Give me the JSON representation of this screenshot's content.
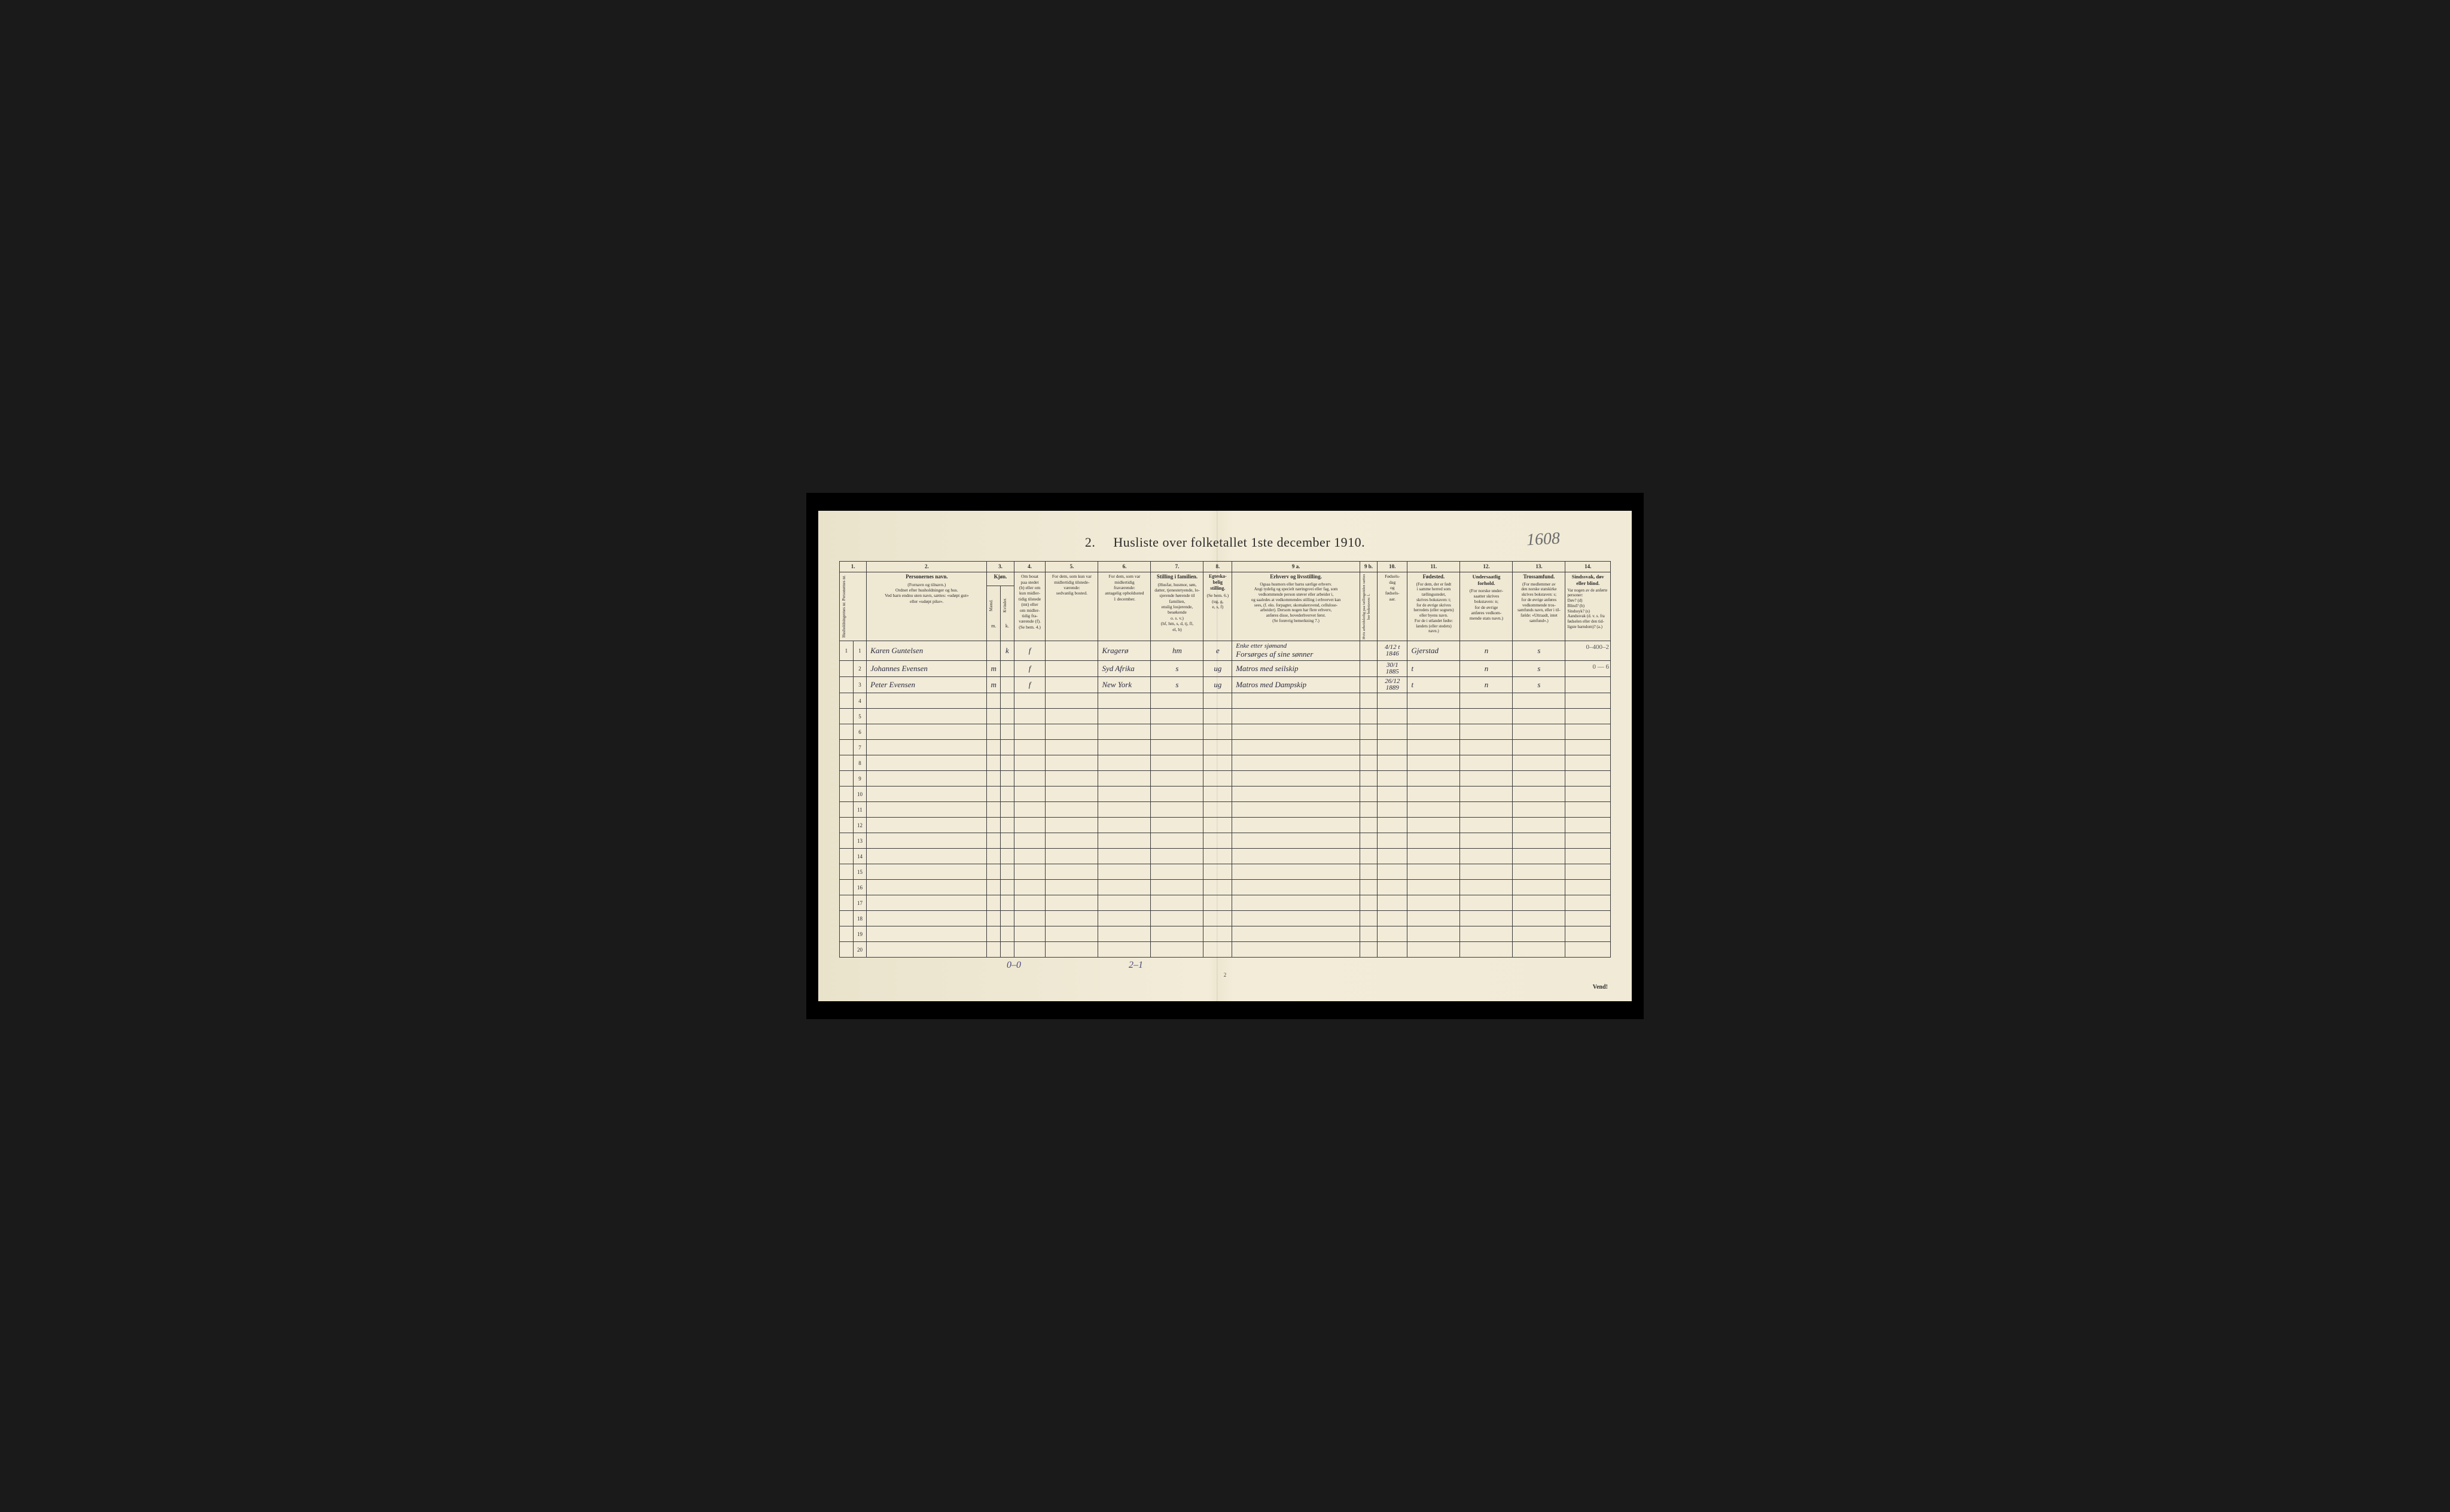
{
  "title_prefix": "2.",
  "title": "Husliste over folketallet 1ste december 1910.",
  "handwritten_top_right": "1608",
  "column_numbers": [
    "1.",
    "2.",
    "3.",
    "4.",
    "5.",
    "6.",
    "7.",
    "8.",
    "9 a.",
    "9 b.",
    "10.",
    "11.",
    "12.",
    "13.",
    "14."
  ],
  "headers": {
    "col1": "Husholdningernes nr.\nPersonernes nr.",
    "col2_main": "Personernes navn.",
    "col2_sub": "(Fornavn og tilnavn.)\nOrdnet efter husholdninger og hus.\nVed barn endnu uten navn, sættes: «udøpt gut»\neller «udøpt pike».",
    "col3_main": "Kjøn.",
    "col3_sub_m": "Mænd.",
    "col3_sub_k": "Kvinder.",
    "col3_mk": "m. k.",
    "col4_main": "Om bosat\npaa stedet\n(b) eller om\nkun midler-\ntidig tilstede\n(mt) eller\nom midler-\ntidig fra-\nværende (f).\n(Se bem. 4.)",
    "col5_main": "For dem, som kun var\nmidlertidig tilstede-\nværende:",
    "col5_sub": "sedvanlig bosted.",
    "col6_main": "For dem, som var\nmidlertidig\nfraværende:",
    "col6_sub": "antagelig opholdssted\n1 december.",
    "col7_main": "Stilling i familien.",
    "col7_sub": "(Husfar, husmor, søn,\ndatter, tjenestetyende, lo-\nsjerende hørende til familien,\nenslig losjerende, besøkende\no. s. v.)\n(hf, hm, s, d, tj, fl,\nel, b)",
    "col8_main": "Egteska-\nbelig\nstilling.",
    "col8_sub": "(Se bem. 6.)\n(ug, g,\ne, s, f)",
    "col9a_main": "Erhverv og livsstilling.",
    "col9a_sub": "Ogsaa husmors eller barns særlige erhverv.\nAngi tydelig og specielt næringsvei eller fag, som\nvedkommende person utøver eller arbeider i,\nog saaledes at vedkommendes stilling i erhvervet kan\nsees, (f. eks. forpagter, skomakersvend, cellulose-\narbeider). Dersom nogen har flere erhverv,\nanføres disse, hovederhvervet først.\n(Se forøvrig bemerkning 7.)",
    "col9b": "Hvis arbeidsledig\npaa tællingstiden sættes\nher bokstaven: l.",
    "col10_main": "Fødsels-\ndag\nog\nfødsels-\naar.",
    "col11_main": "Fødested.",
    "col11_sub": "(For dem, der er født\ni samme herred som\ntællingsstedet,\nskrives bokstaven: t;\nfor de øvrige skrives\nherredets (eller sognets)\neller byens navn.\nFor de i utlandet fødte:\nlandets (eller stedets)\nnavn.)",
    "col12_main": "Undersaatlig\nforhold.",
    "col12_sub": "(For norske under-\nsaatter skrives\nbokstaven: n;\nfor de øvrige\nanføres vedkom-\nmende stats navn.)",
    "col13_main": "Trossamfund.",
    "col13_sub": "(For medlemmer av\nden norske statskirke\nskrives bokstaven: s;\nfor de øvrige anføres\nvedkommende tros-\nsamfunds navn, eller i til-\nfælde: «Uttraadt, intet\nsamfund».)",
    "col14_main": "Sindssvak, døv\neller blind.",
    "col14_sub": "Var nogen av de anførte\npersoner:\nDøv?       (d)\nBlind?     (b)\nSindssyk? (s)\nAandssvak (d. v. s. fra\nfødselen eller den tid-\nligste barndom)? (a.)"
  },
  "rows": [
    {
      "num": "1",
      "name": "Karen Guntelsen",
      "sex_m": "",
      "sex_k": "k",
      "col4": "f",
      "col5": "",
      "col6": "Kragerø",
      "col7": "hm",
      "col8": "e",
      "col9a_top": "Enke etter sjømand",
      "col9a": "Forsørges af sine sønner",
      "col9b": "",
      "col10": "4/12 t\n1846",
      "col11": "Gjerstad",
      "col12": "n",
      "col13": "s",
      "col14": "",
      "note": "0–400–2"
    },
    {
      "num": "2",
      "name": "Johannes Evensen",
      "sex_m": "m",
      "sex_k": "",
      "col4": "f",
      "col5": "",
      "col6": "Syd Afrika",
      "col7": "s",
      "col8": "ug",
      "col9a": "Matros med seilskip",
      "col9b": "",
      "col10": "30/1\n1885",
      "col11": "t",
      "col12": "n",
      "col13": "s",
      "col14": "",
      "note": "0 — 6"
    },
    {
      "num": "3",
      "name": "Peter Evensen",
      "sex_m": "m",
      "sex_k": "",
      "col4": "f",
      "col5": "",
      "col6": "New York",
      "col7": "s",
      "col8": "ug",
      "col9a": "Matros med Dampskip",
      "col9b": "",
      "col10": "26/12\n1889",
      "col11": "t",
      "col12": "n",
      "col13": "s",
      "col14": "",
      "note": ""
    }
  ],
  "empty_row_nums": [
    "4",
    "5",
    "6",
    "7",
    "8",
    "9",
    "10",
    "11",
    "12",
    "13",
    "14",
    "15",
    "16",
    "17",
    "18",
    "19",
    "20"
  ],
  "bottom_hw_left": "0–0",
  "bottom_hw_right": "2–1",
  "page_num_bottom": "2",
  "vend": "Vend!",
  "colors": {
    "paper": "#f0ead6",
    "ink": "#2a2a2a",
    "handwriting": "#2a2a40",
    "pencil": "#6b6b6b",
    "background": "#1a1a1a"
  }
}
